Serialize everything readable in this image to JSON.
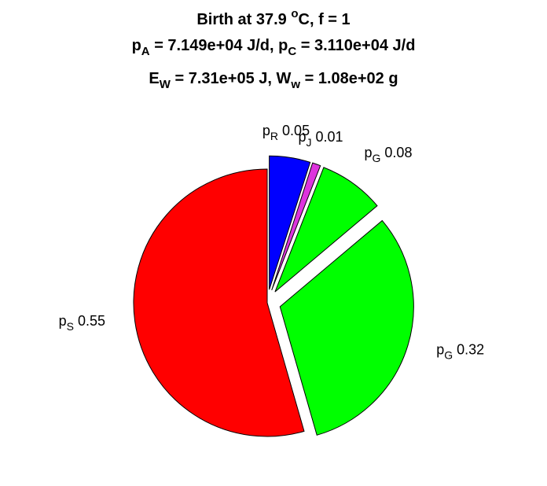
{
  "chart_data": {
    "type": "pie",
    "title_lines": [
      [
        {
          "t": "Birth at 37.9 "
        },
        {
          "t": "o",
          "sup": true
        },
        {
          "t": "C, f = 1"
        }
      ],
      [
        {
          "t": "p"
        },
        {
          "t": "A",
          "sub": true
        },
        {
          "t": " = 7.149e+04 J/d, p"
        },
        {
          "t": "C",
          "sub": true
        },
        {
          "t": " = 3.110e+04 J/d"
        }
      ],
      [
        {
          "t": "E"
        },
        {
          "t": "W",
          "sub": true
        },
        {
          "t": " = 7.31e+05 J, W"
        },
        {
          "t": "w",
          "sub": true
        },
        {
          "t": " = 1.08e+02 g"
        }
      ]
    ],
    "slices": [
      {
        "name": "p",
        "sub": "R",
        "value": 0.05,
        "label": "0.05",
        "color": "#0000ff",
        "exploded": true
      },
      {
        "name": "p",
        "sub": "J",
        "value": 0.01,
        "label": "0.01",
        "color": "#dd33dd",
        "exploded": true
      },
      {
        "name": "p",
        "sub": "G",
        "value": 0.08,
        "label": "0.08",
        "color": "#00ff00",
        "exploded": true
      },
      {
        "name": "p",
        "sub": "G",
        "value": 0.32,
        "label": "0.32",
        "color": "#00ff00",
        "exploded": true
      },
      {
        "name": "p",
        "sub": "S",
        "value": 0.55,
        "label": "0.55",
        "color": "#ff0000",
        "exploded": false
      }
    ]
  }
}
